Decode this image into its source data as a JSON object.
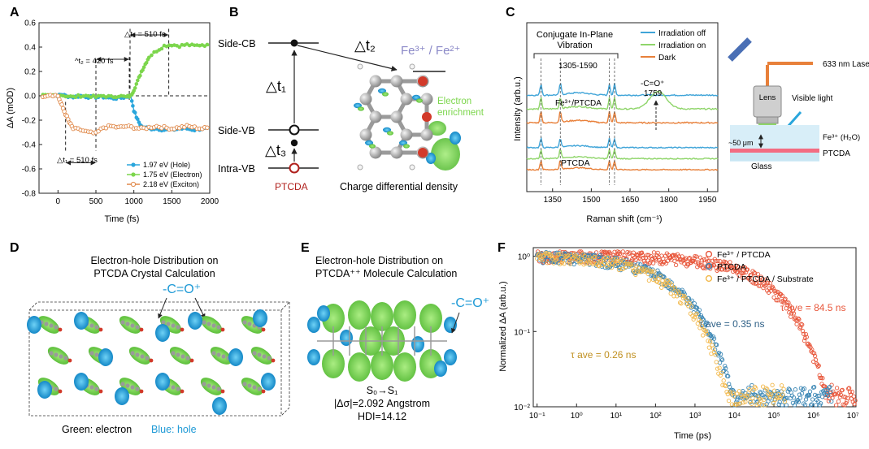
{
  "colors": {
    "hole": "#2aa6dc",
    "electron": "#7cd64c",
    "exciton": "#e0894a",
    "fe_ptcda_red": "#e8563a",
    "ptcda_blue": "#3a86b4",
    "substrate_yellow": "#f2b84a",
    "raman_off": "#3fa4d8",
    "raman_on": "#8fd56a",
    "raman_dark": "#e8803a",
    "mol_green": "#7cd64c",
    "mol_blue": "#1f9ad6",
    "dark_red": "#b0201c"
  },
  "panels": {
    "A": {
      "label": "A",
      "annotations": {
        "dt3": "△t₃ = 510 fs",
        "dt2": "^t₂ = 420 fs",
        "dt1": "△t₁ = 510 fs"
      }
    },
    "B": {
      "label": "B",
      "side_cb": "Side-CB",
      "side_vb": "Side-VB",
      "intra_vb": "Intra-VB",
      "dt1": "△t₁",
      "dt2": "△t₂",
      "dt3": "△t₃",
      "fe_label": "Fe³⁺ / Fe²⁺",
      "ptcda": "PTCDA",
      "enrichment_1": "Electron",
      "enrichment_2": "enrichment",
      "caption": "Charge differential density"
    },
    "C": {
      "label": "C",
      "conjugate_1": "Conjugate In-Plane",
      "conjugate_2": "Vibration",
      "range": "1305-1590",
      "co_1": "-C=O⁺",
      "co_2": "1759",
      "fe_ptcda": "Fe³⁺/PTCDA",
      "ptcda": "PTCDA",
      "legend": [
        "Irradiation off",
        "Irradiation on",
        "Dark"
      ],
      "laser": "633 nm Laser",
      "lens": "Lens",
      "visible": "Visible light",
      "fe_h2o": "Fe³⁺ (H₂O)",
      "thickness": "~50 μm",
      "ptcda_layer": "PTCDA",
      "glass": "Glass"
    },
    "D": {
      "label": "D",
      "title_1": "Electron-hole Distribution on",
      "title_2": "PTCDA Crystal Calculation",
      "co": "-C=O⁺",
      "green_label": "Green: electron",
      "blue_label": "Blue: hole"
    },
    "E": {
      "label": "E",
      "title_1": "Electron-hole Distribution on",
      "title_2": "PTCDA⁺⁺ Molecule Calculation",
      "co": "-C=O⁺",
      "transition": "S₀→S₁",
      "delta_sigma": "|Δσ|=2.092 Angstrom",
      "hdi": "HDI=14.12"
    },
    "F": {
      "label": "F",
      "tau_red": "τ ave = 84.5 ns",
      "tau_blue": "τ ave = 0.35 ns",
      "tau_yellow": "τ ave = 0.26 ns"
    }
  },
  "chart_data": [
    {
      "panel": "A",
      "type": "line",
      "xlabel": "Time (fs)",
      "ylabel": "ΔA (mOD)",
      "xlim": [
        -250,
        2000
      ],
      "ylim": [
        -0.8,
        0.6
      ],
      "xticks": [
        0,
        500,
        1000,
        1500,
        2000
      ],
      "yticks": [
        -0.8,
        -0.6,
        -0.4,
        -0.2,
        0.0,
        0.2,
        0.4,
        0.6
      ],
      "xtick_labels": [
        "0",
        "500",
        "1000",
        "1500",
        "2000"
      ],
      "ytick_labels": [
        "-0.8",
        "-0.6",
        "-0.4",
        "-0.2",
        "0.0",
        "0.2",
        "0.4",
        "0.6"
      ],
      "legend": [
        "1.97 eV (Hole)",
        "1.75 eV (Electron)",
        "2.18 eV (Exciton)"
      ],
      "series": [
        {
          "name": "1.97 eV (Hole)",
          "x": [
            -200,
            -100,
            0,
            50,
            100,
            200,
            300,
            400,
            500,
            600,
            700,
            800,
            900,
            960,
            1000,
            1050,
            1100,
            1200,
            1300,
            1400,
            1500,
            1600,
            1700,
            1800,
            1900,
            2000
          ],
          "y": [
            0,
            0.01,
            0,
            0.01,
            0,
            -0.01,
            0,
            -0.01,
            -0.01,
            -0.01,
            -0.02,
            -0.02,
            -0.01,
            0.0,
            -0.12,
            -0.2,
            -0.25,
            -0.27,
            -0.27,
            -0.28,
            -0.28,
            -0.27,
            -0.27,
            -0.28,
            -0.27,
            -0.27
          ]
        },
        {
          "name": "1.75 eV (Electron)",
          "x": [
            -200,
            -100,
            0,
            100,
            200,
            300,
            400,
            500,
            600,
            700,
            800,
            900,
            960,
            1000,
            1050,
            1100,
            1150,
            1200,
            1300,
            1400,
            1500,
            1600,
            1700,
            1800,
            1900,
            2000
          ],
          "y": [
            0,
            0,
            0.01,
            0,
            -0.01,
            0,
            0,
            -0.01,
            0,
            -0.01,
            0,
            -0.01,
            0,
            0.05,
            0.12,
            0.2,
            0.26,
            0.32,
            0.37,
            0.41,
            0.42,
            0.41,
            0.42,
            0.41,
            0.42,
            0.41
          ]
        },
        {
          "name": "2.18 eV (Exciton)",
          "x": [
            -200,
            -100,
            0,
            50,
            100,
            150,
            200,
            300,
            400,
            500,
            600,
            700,
            800,
            900,
            1000,
            1100,
            1200,
            1300,
            1400,
            1500,
            1600,
            1700,
            1800,
            1900,
            2000
          ],
          "y": [
            0,
            0.01,
            0,
            -0.08,
            -0.15,
            -0.22,
            -0.27,
            -0.28,
            -0.3,
            -0.31,
            -0.26,
            -0.25,
            -0.26,
            -0.25,
            -0.26,
            -0.27,
            -0.26,
            -0.25,
            -0.26,
            -0.27,
            -0.26,
            -0.25,
            -0.26,
            -0.27,
            -0.26
          ]
        }
      ]
    },
    {
      "panel": "C",
      "type": "line",
      "xlabel": "Raman shift (cm⁻¹)",
      "ylabel": "Intensity (arb.u.)",
      "xlim": [
        1250,
        1990
      ],
      "xticks": [
        1350,
        1500,
        1650,
        1800,
        1950
      ],
      "xtick_labels": [
        "1350",
        "1500",
        "1650",
        "1800",
        "1950"
      ],
      "peaks": [
        1305,
        1380,
        1570,
        1590
      ],
      "series": [
        {
          "name": "Fe³⁺/PTCDA Irradiation off",
          "offset": 6.4
        },
        {
          "name": "Fe³⁺/PTCDA Irradiation on",
          "offset": 5.4,
          "peak": 1759
        },
        {
          "name": "Fe³⁺/PTCDA Dark",
          "offset": 4.4
        },
        {
          "name": "PTCDA Irradiation off",
          "offset": 2.6
        },
        {
          "name": "PTCDA Irradiation on",
          "offset": 1.8
        },
        {
          "name": "PTCDA Dark",
          "offset": 1.0
        }
      ]
    },
    {
      "panel": "F",
      "type": "scatter",
      "xlabel": "Time (ps)",
      "ylabel": "Normalized ΔA (arb.u.)",
      "xscale": "log",
      "yscale": "log",
      "xlim": [
        0.08,
        12000000
      ],
      "ylim": [
        0.01,
        1.3
      ],
      "xticks": [
        0.1,
        1,
        10,
        100,
        1000,
        10000,
        100000,
        1000000,
        10000000
      ],
      "xtick_labels": [
        "10⁻¹",
        "10⁰",
        "10¹",
        "10²",
        "10³",
        "10⁴",
        "10⁵",
        "10⁶",
        "10⁷"
      ],
      "yticks": [
        0.01,
        0.1,
        1
      ],
      "ytick_labels": [
        "10⁻²",
        "10⁻¹",
        "10⁰"
      ],
      "legend": [
        "Fe³⁺ / PTCDA",
        "PTCDA",
        "Fe³⁺ / PTCDA / Substrate"
      ],
      "series": [
        {
          "name": "Fe³⁺ / PTCDA",
          "tau_ps": 84500,
          "x_end": 12000000
        },
        {
          "name": "PTCDA",
          "tau_ps": 350,
          "x_end": 3000000
        },
        {
          "name": "Fe³⁺ / PTCDA / Substrate",
          "tau_ps": 260,
          "x_end": 200000
        }
      ]
    }
  ]
}
